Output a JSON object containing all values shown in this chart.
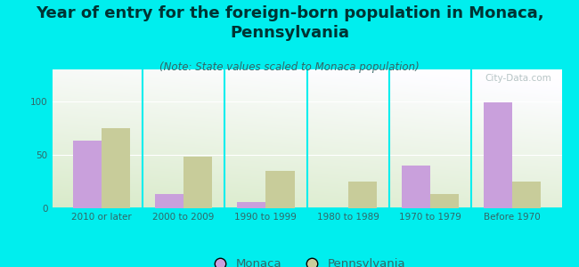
{
  "title": "Year of entry for the foreign-born population in Monaca,\nPennsylvania",
  "subtitle": "(Note: State values scaled to Monaca population)",
  "categories": [
    "2010 or later",
    "2000 to 2009",
    "1990 to 1999",
    "1980 to 1989",
    "1970 to 1979",
    "Before 1970"
  ],
  "monaca_values": [
    63,
    13,
    6,
    0,
    40,
    99
  ],
  "pennsylvania_values": [
    75,
    48,
    35,
    25,
    13,
    25
  ],
  "monaca_color": "#c9a0dc",
  "pennsylvania_color": "#c8cc9a",
  "background_outer": "#00eeee",
  "ylim": [
    0,
    130
  ],
  "yticks": [
    0,
    50,
    100
  ],
  "bar_width": 0.35,
  "watermark": "City-Data.com",
  "title_fontsize": 13,
  "subtitle_fontsize": 8.5,
  "tick_fontsize": 7.5,
  "legend_fontsize": 9.5,
  "title_color": "#003333",
  "subtitle_color": "#336666",
  "tick_color": "#336666"
}
